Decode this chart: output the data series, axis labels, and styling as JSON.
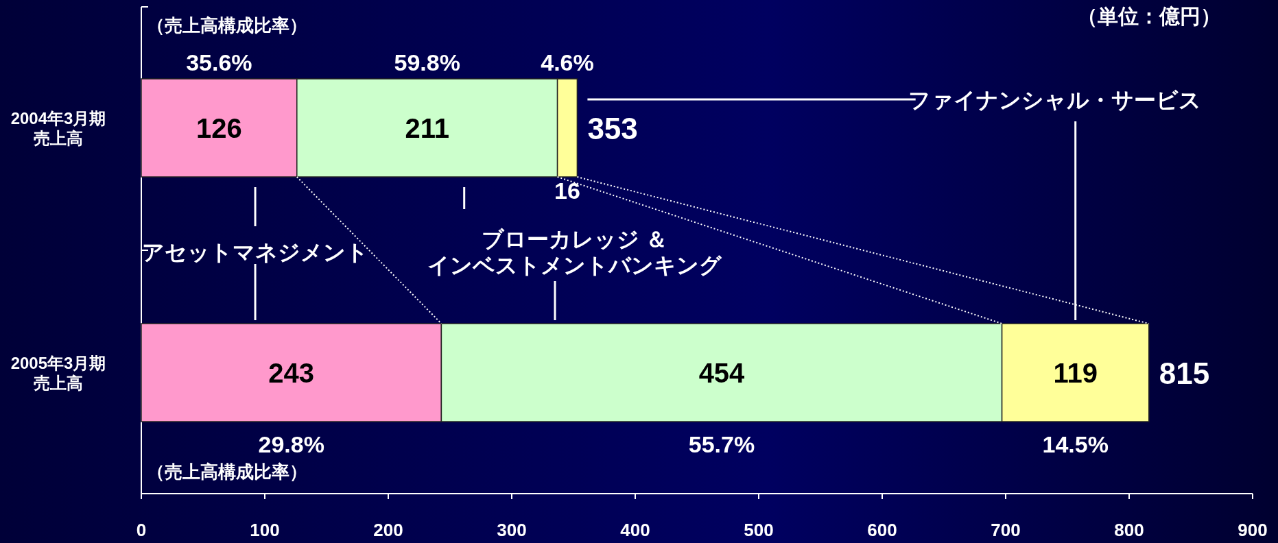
{
  "chart_data": {
    "type": "bar",
    "orientation": "horizontal",
    "stacked": true,
    "data_labels": true,
    "categories": [
      "2004年3月期売上高",
      "2005年3月期売上高"
    ],
    "series": [
      {
        "name": "アセットマネジメント",
        "color": "#ff99cc",
        "values": [
          126,
          243
        ]
      },
      {
        "name": "ブローカレッジ ＆インベストメントバンキング",
        "color": "#ccffcc",
        "values": [
          211,
          454
        ]
      },
      {
        "name": "ファイナンシャル・サービス",
        "color": "#ffff99",
        "values": [
          16,
          119
        ]
      }
    ],
    "totals": [
      "353",
      "815"
    ],
    "xlim": [
      0,
      900
    ],
    "xticks": [
      0,
      100,
      200,
      300,
      400,
      500,
      600,
      700,
      800,
      900
    ],
    "grid": false,
    "legend": false,
    "annotations": [
      "（売上高構成比率）",
      "（売上高構成比率）",
      "（単位：億円）",
      "35.6%",
      "59.8%",
      "4.6%",
      "29.8%",
      "55.7%",
      "14.5%"
    ]
  }
}
